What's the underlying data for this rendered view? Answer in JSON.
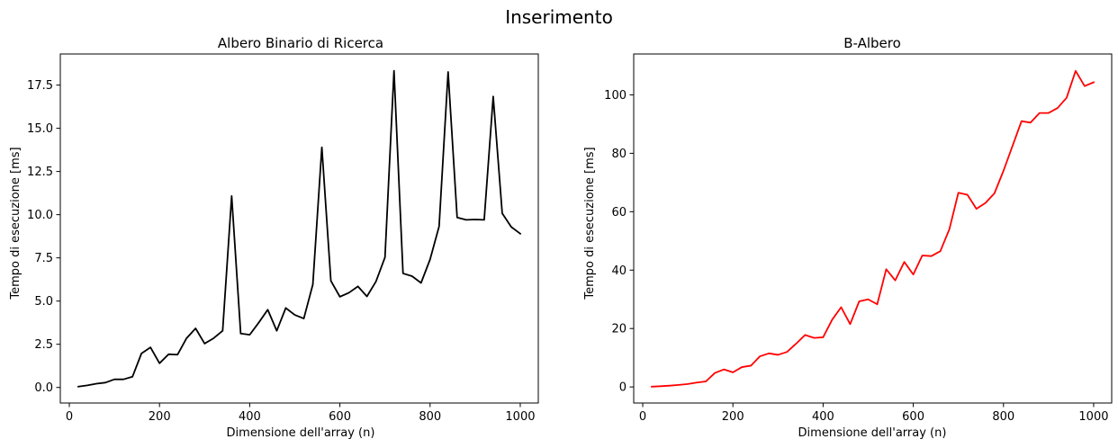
{
  "figure": {
    "suptitle": "Inserimento"
  },
  "chart_data": [
    {
      "type": "line",
      "title": "Albero Binario di Ricerca",
      "xlabel": "Dimensione dell'array (n)",
      "ylabel": "Tempo di esecuzione [ms]",
      "xlim": [
        -20,
        1040
      ],
      "ylim": [
        -0.9,
        19.3
      ],
      "xticks": [
        0,
        200,
        400,
        600,
        800,
        1000
      ],
      "xtick_labels": [
        "0",
        "200",
        "400",
        "600",
        "800",
        "1000"
      ],
      "yticks": [
        0,
        2.5,
        5,
        7.5,
        10,
        12.5,
        15,
        17.5
      ],
      "ytick_labels": [
        "0.0",
        "2.5",
        "5.0",
        "7.5",
        "10.0",
        "12.5",
        "15.0",
        "17.5"
      ],
      "grid": false,
      "series": [
        {
          "color": "#000000",
          "x": [
            20,
            40,
            60,
            80,
            100,
            120,
            140,
            160,
            180,
            200,
            220,
            240,
            260,
            280,
            300,
            320,
            340,
            360,
            380,
            400,
            420,
            440,
            460,
            480,
            500,
            520,
            540,
            560,
            580,
            600,
            620,
            640,
            660,
            680,
            700,
            720,
            740,
            760,
            780,
            800,
            820,
            840,
            860,
            880,
            900,
            920,
            940,
            960,
            980,
            1000
          ],
          "values": [
            0.05,
            0.12,
            0.22,
            0.28,
            0.47,
            0.47,
            0.62,
            1.97,
            2.32,
            1.4,
            1.92,
            1.9,
            2.85,
            3.42,
            2.54,
            2.85,
            3.28,
            11.08,
            3.12,
            3.05,
            3.75,
            4.5,
            3.28,
            4.6,
            4.2,
            3.99,
            5.96,
            13.9,
            6.17,
            5.25,
            5.48,
            5.85,
            5.27,
            6.13,
            7.53,
            18.33,
            6.6,
            6.44,
            6.05,
            7.41,
            9.32,
            18.26,
            9.84,
            9.7,
            9.72,
            9.7,
            16.84,
            10.08,
            9.29,
            8.9
          ]
        }
      ]
    },
    {
      "type": "line",
      "title": "B-Albero",
      "xlabel": "Dimensione dell'array (n)",
      "ylabel": "Tempo di esecuzione [ms]",
      "xlim": [
        -20,
        1040
      ],
      "ylim": [
        -5.5,
        114
      ],
      "xticks": [
        0,
        200,
        400,
        600,
        800,
        1000
      ],
      "xtick_labels": [
        "0",
        "200",
        "400",
        "600",
        "800",
        "1000"
      ],
      "yticks": [
        0,
        20,
        40,
        60,
        80,
        100
      ],
      "ytick_labels": [
        "0",
        "20",
        "40",
        "60",
        "80",
        "100"
      ],
      "grid": false,
      "series": [
        {
          "color": "#ff0000",
          "x": [
            20,
            40,
            60,
            80,
            100,
            120,
            140,
            160,
            180,
            200,
            220,
            240,
            260,
            280,
            300,
            320,
            340,
            360,
            380,
            400,
            420,
            440,
            460,
            480,
            500,
            520,
            540,
            560,
            580,
            600,
            620,
            640,
            660,
            680,
            700,
            720,
            740,
            760,
            780,
            800,
            820,
            840,
            860,
            880,
            900,
            920,
            940,
            960,
            980,
            1000
          ],
          "values": [
            0.1,
            0.25,
            0.45,
            0.7,
            1.0,
            1.5,
            1.9,
            4.8,
            6.0,
            5.0,
            6.8,
            7.3,
            10.5,
            11.5,
            11.0,
            12.0,
            14.8,
            17.8,
            16.8,
            17.0,
            23.0,
            27.3,
            21.5,
            29.3,
            30.0,
            28.3,
            40.3,
            36.5,
            42.8,
            38.5,
            45.0,
            44.8,
            46.5,
            54.0,
            66.5,
            65.8,
            61.0,
            63.0,
            66.3,
            74.0,
            82.5,
            91.0,
            90.5,
            93.8,
            93.8,
            95.5,
            99.0,
            108.2,
            103.0,
            104.3
          ]
        }
      ]
    }
  ]
}
